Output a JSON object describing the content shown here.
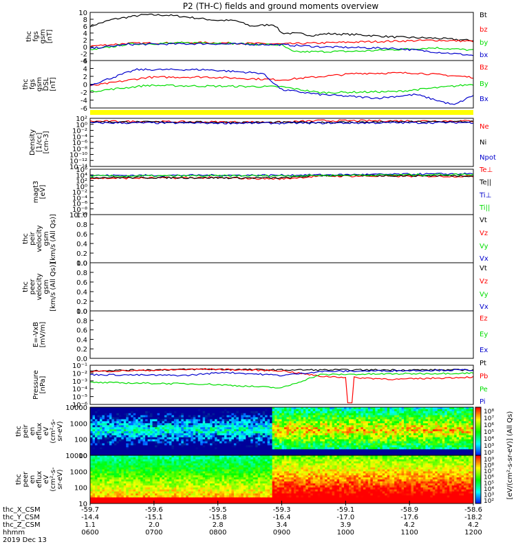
{
  "title": "P2 (TH-C) fields and ground moments overview",
  "colors": {
    "black": "#000000",
    "red": "#ff0000",
    "green": "#00dd00",
    "blue": "#0000cc",
    "yellow": "#ffff00"
  },
  "chart_data": [
    {
      "id": "fgs",
      "type": "line",
      "ylabel": [
        "thc",
        "fgs",
        "gsm",
        "[nT]"
      ],
      "ylim": [
        -4,
        10
      ],
      "yticks": [
        "10",
        "8",
        "6",
        "4",
        "2",
        "0",
        "-2",
        "-4"
      ],
      "series": [
        {
          "name": "Bt",
          "color": "black",
          "trend": [
            [
              0,
              6
            ],
            [
              0.06,
              8
            ],
            [
              0.14,
              9.3
            ],
            [
              0.2,
              9.2
            ],
            [
              0.25,
              8.7
            ],
            [
              0.28,
              8.3
            ],
            [
              0.33,
              7.7
            ],
            [
              0.38,
              7.6
            ],
            [
              0.42,
              6
            ],
            [
              0.48,
              6.5
            ],
            [
              0.5,
              4
            ],
            [
              0.55,
              3.8
            ],
            [
              0.58,
              3.3
            ],
            [
              0.62,
              3.8
            ],
            [
              0.7,
              3.5
            ],
            [
              0.8,
              2.8
            ],
            [
              0.9,
              2.5
            ],
            [
              1,
              1.8
            ]
          ]
        },
        {
          "name": "bz",
          "color": "red",
          "trend": [
            [
              0,
              0.2
            ],
            [
              0.1,
              1
            ],
            [
              0.3,
              1.2
            ],
            [
              0.5,
              0.8
            ],
            [
              0.7,
              1.4
            ],
            [
              0.9,
              1.9
            ],
            [
              1,
              1.6
            ]
          ]
        },
        {
          "name": "by",
          "color": "green",
          "trend": [
            [
              0,
              -1
            ],
            [
              0.1,
              0.8
            ],
            [
              0.3,
              1.2
            ],
            [
              0.5,
              0.5
            ],
            [
              0.53,
              -1.5
            ],
            [
              0.7,
              -1.3
            ],
            [
              0.9,
              -0.3
            ],
            [
              1,
              -1
            ]
          ]
        },
        {
          "name": "bx",
          "color": "blue",
          "trend": [
            [
              0,
              -0.5
            ],
            [
              0.1,
              0.7
            ],
            [
              0.3,
              0.9
            ],
            [
              0.5,
              0.6
            ],
            [
              0.6,
              0
            ],
            [
              0.8,
              -0.5
            ],
            [
              0.95,
              -2
            ],
            [
              1,
              -2.5
            ]
          ]
        }
      ]
    },
    {
      "id": "fgm",
      "type": "line",
      "ylabel": [
        "thc",
        "fgs",
        "gsm",
        "DSL",
        "[nT]"
      ],
      "ylim": [
        -7,
        6
      ],
      "yticks": [
        "6",
        "4",
        "2",
        "0",
        "-2",
        "-4",
        "-6"
      ],
      "series": [
        {
          "name": "Bz",
          "color": "red",
          "trend": [
            [
              0,
              -1
            ],
            [
              0.15,
              1.4
            ],
            [
              0.3,
              1.5
            ],
            [
              0.5,
              0.7
            ],
            [
              0.7,
              2.5
            ],
            [
              0.85,
              2.6
            ],
            [
              1,
              1.4
            ]
          ]
        },
        {
          "name": "By",
          "color": "green",
          "trend": [
            [
              0,
              -2.5
            ],
            [
              0.15,
              -0.8
            ],
            [
              0.3,
              -1
            ],
            [
              0.5,
              -1.2
            ],
            [
              0.6,
              -2.8
            ],
            [
              0.8,
              -2.5
            ],
            [
              1,
              -0.5
            ]
          ]
        },
        {
          "name": "Bx",
          "color": "blue",
          "trend": [
            [
              0,
              -0.7
            ],
            [
              0.12,
              3.5
            ],
            [
              0.3,
              3.5
            ],
            [
              0.45,
              2.5
            ],
            [
              0.5,
              -2
            ],
            [
              0.6,
              -3.3
            ],
            [
              0.75,
              -4.3
            ],
            [
              0.85,
              -3.3
            ],
            [
              0.95,
              -6.2
            ],
            [
              1,
              -3.5
            ]
          ]
        }
      ]
    },
    {
      "id": "density",
      "type": "line",
      "ylabel": [
        "Density",
        "[1/cc]",
        "[cm-3]"
      ],
      "log": true,
      "ylim": [
        -14,
        2
      ],
      "yticks": [
        "10²",
        "10⁰",
        "10⁻²",
        "10⁻⁴",
        "10⁻⁶",
        "10⁻⁸",
        "10⁻¹⁰",
        "10⁻¹²",
        "10⁻¹⁴"
      ],
      "series": [
        {
          "name": "Ne",
          "color": "red",
          "trend": [
            [
              0,
              1
            ],
            [
              0.3,
              0.8
            ],
            [
              0.5,
              0.7
            ],
            [
              0.6,
              1.2
            ],
            [
              1,
              1.1
            ]
          ]
        },
        {
          "name": "Ni",
          "color": "black",
          "trend": [
            [
              0,
              0.8
            ],
            [
              0.5,
              0.6
            ],
            [
              1,
              0.9
            ]
          ]
        },
        {
          "name": "Npot",
          "color": "blue",
          "trend": [
            [
              0,
              0.5
            ],
            [
              0.5,
              0.4
            ],
            [
              1,
              0.6
            ]
          ]
        }
      ]
    },
    {
      "id": "temp",
      "type": "line",
      "ylabel": [
        "magt3",
        "[eV]"
      ],
      "log": true,
      "ylim": [
        -10,
        6
      ],
      "yticks": [
        "10⁶",
        "10⁴",
        "10²",
        "10⁰",
        "10⁻²",
        "10⁻⁴",
        "10⁻⁶",
        "10⁻⁸",
        "10⁻¹⁰"
      ],
      "series": [
        {
          "name": "Te⊥",
          "color": "red",
          "trend": [
            [
              0,
              2.8
            ],
            [
              0.3,
              3
            ],
            [
              0.5,
              2.6
            ],
            [
              0.6,
              3.6
            ],
            [
              1,
              3.5
            ]
          ]
        },
        {
          "name": "Te||",
          "color": "black",
          "trend": [
            [
              0,
              3.1
            ],
            [
              0.5,
              2.9
            ],
            [
              0.6,
              3.8
            ],
            [
              1,
              3.7
            ]
          ]
        },
        {
          "name": "Ti⊥",
          "color": "blue",
          "trend": [
            [
              0,
              3.8
            ],
            [
              0.5,
              3.9
            ],
            [
              1,
              4.4
            ]
          ]
        },
        {
          "name": "Ti||",
          "color": "green",
          "trend": [
            [
              0,
              3.6
            ],
            [
              0.5,
              3.7
            ],
            [
              1,
              4.2
            ]
          ]
        }
      ]
    },
    {
      "id": "peir",
      "type": "line",
      "ylabel": [
        "thc",
        "peir",
        "velocity",
        "gsm",
        "[km/s (All Qs)]"
      ],
      "ylim": [
        0,
        1
      ],
      "yticks": [
        "1.0",
        "0.8",
        "0.6",
        "0.4",
        "0.2",
        "0.0"
      ],
      "series": [
        {
          "name": "Vt",
          "color": "black"
        },
        {
          "name": "Vz",
          "color": "red"
        },
        {
          "name": "Vy",
          "color": "green"
        },
        {
          "name": "Vx",
          "color": "blue"
        }
      ]
    },
    {
      "id": "peer",
      "type": "line",
      "ylabel": [
        "thc",
        "peer",
        "velocity",
        "gsm",
        "[km/s (All Qs)]"
      ],
      "ylim": [
        0,
        1
      ],
      "yticks": [
        "1.0",
        "0.8",
        "0.6",
        "0.4",
        "0.2",
        "0.0"
      ],
      "series": [
        {
          "name": "Vt",
          "color": "black"
        },
        {
          "name": "Vz",
          "color": "red"
        },
        {
          "name": "Vy",
          "color": "green"
        },
        {
          "name": "Vx",
          "color": "blue"
        }
      ]
    },
    {
      "id": "efield",
      "type": "line",
      "ylabel": [
        "E=-VxB",
        "[mV/m]"
      ],
      "ylim": [
        0,
        1
      ],
      "yticks": [
        "1.0",
        "0.8",
        "0.6",
        "0.4",
        "0.2",
        "0.0"
      ],
      "series": [
        {
          "name": "Ez",
          "color": "red"
        },
        {
          "name": "Ey",
          "color": "green"
        },
        {
          "name": "Ex",
          "color": "blue"
        }
      ]
    },
    {
      "id": "pressure",
      "type": "line",
      "ylabel": [
        "Pressure",
        "[nPa]"
      ],
      "log": true,
      "ylim": [
        -6,
        -1
      ],
      "yticks": [
        "10⁻¹",
        "10⁻²",
        "10⁻³",
        "10⁻⁴",
        "10⁻⁵",
        "10⁻⁶"
      ],
      "series": [
        {
          "name": "Pt",
          "color": "black",
          "trend": [
            [
              0,
              -1.7
            ],
            [
              0.3,
              -1.5
            ],
            [
              0.5,
              -1.6
            ],
            [
              0.7,
              -1.6
            ],
            [
              1,
              -1.6
            ]
          ]
        },
        {
          "name": "Pb",
          "color": "red",
          "trend": [
            [
              0,
              -1.8
            ],
            [
              0.3,
              -1.5
            ],
            [
              0.5,
              -1.7
            ],
            [
              0.6,
              -2.4
            ],
            [
              0.8,
              -2.8
            ],
            [
              1,
              -2.5
            ]
          ]
        },
        {
          "name": "Pe",
          "color": "green",
          "trend": [
            [
              0,
              -3.2
            ],
            [
              0.3,
              -3.4
            ],
            [
              0.5,
              -3.9
            ],
            [
              0.6,
              -2.2
            ],
            [
              1,
              -2
            ]
          ]
        },
        {
          "name": "Pi",
          "color": "blue",
          "trend": [
            [
              0,
              -2.2
            ],
            [
              0.25,
              -2.3
            ],
            [
              0.35,
              -1.9
            ],
            [
              0.5,
              -2.3
            ],
            [
              0.6,
              -1.8
            ],
            [
              1,
              -1.6
            ]
          ]
        }
      ]
    },
    {
      "id": "peir_en",
      "type": "heatmap",
      "ylabel": [
        "thc",
        "peir",
        "en",
        "eflux",
        "eV",
        "(cm²-s-",
        "sr-eV)"
      ],
      "yticks": [
        "10000",
        "1000",
        "100",
        "10"
      ]
    },
    {
      "id": "peer_en",
      "type": "heatmap",
      "ylabel": [
        "thc",
        "peer",
        "en",
        "eflux",
        "eV",
        "(cm²-s-",
        "sr-eV)"
      ],
      "yticks": [
        "10000",
        "1000",
        "100",
        "10"
      ]
    }
  ],
  "colorbar": {
    "label": "[eV/(cm²-s-sr-eV)] (All Qs)",
    "ticks_top": [
      "10⁸",
      "10⁷",
      "10⁶",
      "10⁵",
      "10⁴",
      "10³",
      "10²"
    ],
    "ticks_bottom": [
      "10⁹",
      "10⁸",
      "10⁷",
      "10⁶",
      "10⁵",
      "10⁴",
      "10³",
      "10²"
    ]
  },
  "footer": {
    "rows": [
      {
        "label": "thc_X_CSM",
        "values": [
          "-59.7",
          "-59.6",
          "-59.5",
          "-59.3",
          "-59.1",
          "-58.9",
          "-58.6"
        ]
      },
      {
        "label": "thc_Y_CSM",
        "values": [
          "-14.4",
          "-15.1",
          "-15.8",
          "-16.4",
          "-17.0",
          "-17.6",
          "-18.2"
        ]
      },
      {
        "label": "thc_Z_CSM",
        "values": [
          "1.1",
          "2.0",
          "2.8",
          "3.4",
          "3.9",
          "4.2",
          "4.2"
        ]
      },
      {
        "label": "hhmm",
        "values": [
          "0600",
          "0700",
          "0800",
          "0900",
          "1000",
          "1100",
          "1200"
        ]
      }
    ],
    "date": "2019 Dec 13"
  }
}
